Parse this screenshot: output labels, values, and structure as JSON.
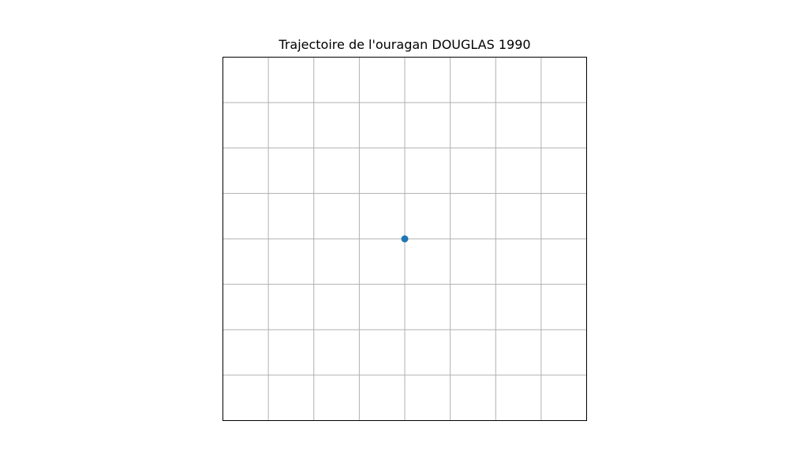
{
  "chart_data": {
    "type": "scatter",
    "title": "Trajectoire de l'ouragan DOUGLAS 1990",
    "xlabel": "",
    "ylabel": "",
    "xlim": [
      -4,
      4
    ],
    "ylim": [
      -4,
      4
    ],
    "grid": true,
    "axis_ticks_visible": false,
    "series": [
      {
        "x": [
          0
        ],
        "y": [
          0
        ],
        "color": "#1f77b4"
      }
    ]
  }
}
